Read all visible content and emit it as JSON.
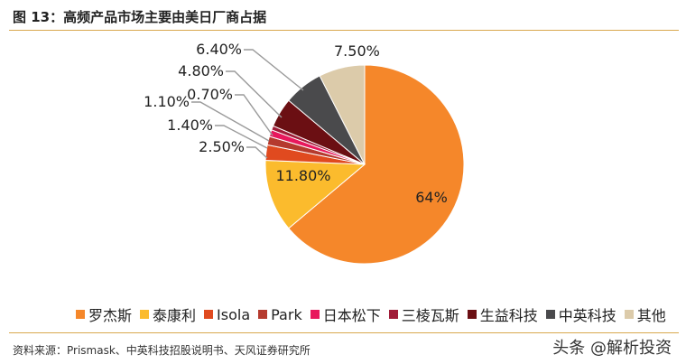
{
  "title": "图 13：高频产品市场主要由美日厂商占据",
  "source": "资料来源：Prismask、中英科技招股说明书、天风证券研究所",
  "watermark": "头条 @解析投资",
  "chart_data": {
    "type": "pie",
    "title": "",
    "start_angle_deg": 0,
    "direction": "clockwise",
    "legend_position": "bottom",
    "slices": [
      {
        "name": "罗杰斯",
        "value": 64,
        "label": "64%",
        "color": "#f5872a"
      },
      {
        "name": "泰康利",
        "value": 11.8,
        "label": "11.80%",
        "color": "#fbbb2d"
      },
      {
        "name": "Isola",
        "value": 2.5,
        "label": "2.50%",
        "color": "#e04a1f"
      },
      {
        "name": "Park",
        "value": 1.4,
        "label": "1.40%",
        "color": "#b53a2e"
      },
      {
        "name": "日本松下",
        "value": 1.1,
        "label": "1.10%",
        "color": "#e8185d"
      },
      {
        "name": "三棱瓦斯",
        "value": 0.7,
        "label": "0.70%",
        "color": "#a01c38"
      },
      {
        "name": "生益科技",
        "value": 4.8,
        "label": "4.80%",
        "color": "#6b0f13"
      },
      {
        "name": "中英科技",
        "value": 6.4,
        "label": "6.40%",
        "color": "#4a4a4c"
      },
      {
        "name": "其他",
        "value": 7.5,
        "label": "7.50%",
        "color": "#dccbaa"
      }
    ]
  }
}
